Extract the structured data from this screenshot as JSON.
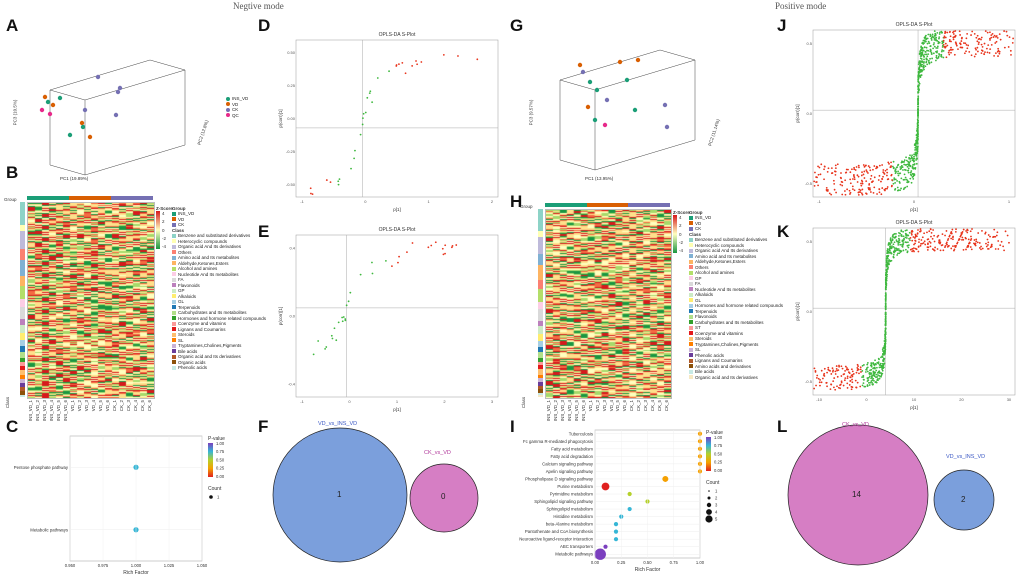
{
  "modes": {
    "negative": "Negtive mode",
    "positive": "Positive mode"
  },
  "panel_labels": [
    "A",
    "B",
    "C",
    "D",
    "E",
    "F",
    "G",
    "H",
    "I",
    "J",
    "K",
    "L"
  ],
  "splot": {
    "title": "OPLS-DA S-Plot",
    "xlabel": "p[1]",
    "ylabel": "p(corr)[1]"
  },
  "pca": {
    "neg": {
      "x": "PC1 (19.89%)",
      "y": "PC2 (12.8%)",
      "z": "PC3 (10.5%)"
    },
    "pos": {
      "x": "PC1 (13.95%)",
      "y": "PC2 (11.14%)",
      "z": "PC3 (9.57%)"
    },
    "legend_title": "Group",
    "groups": [
      {
        "name": "INS_VD",
        "color": "#1b9e77"
      },
      {
        "name": "VD",
        "color": "#d95f02"
      },
      {
        "name": "CK",
        "color": "#7570b3"
      },
      {
        "name": "QC",
        "color": "#e7298a"
      }
    ]
  },
  "heatmap": {
    "group_label": "Group",
    "class_label": "Class",
    "zscore_title": "Z-Score",
    "zscore_ticks": [
      "4",
      "2",
      "0",
      "-2",
      "-4"
    ],
    "group_title": "Group",
    "groups": [
      {
        "name": "INS_VD",
        "color": "#1b9e77"
      },
      {
        "name": "VD",
        "color": "#d95f02"
      },
      {
        "name": "CK",
        "color": "#7570b3"
      }
    ],
    "samples": [
      "INS_VD_1",
      "INS_VD_2",
      "INS_VD_3",
      "INS_VD_4",
      "INS_VD_5",
      "INS_VD_6",
      "VD_1",
      "VD_2",
      "VD_3",
      "VD_4",
      "VD_5",
      "VD_6",
      "CK_1",
      "CK_2",
      "CK_3",
      "CK_4",
      "CK_5",
      "CK_6"
    ],
    "classes_neg": [
      {
        "name": "Benzene and substituted derivatives",
        "color": "#8dd3c7"
      },
      {
        "name": "Heterocyclic compounds",
        "color": "#ffffb3"
      },
      {
        "name": "Organic acid And Its derivatives",
        "color": "#bebada"
      },
      {
        "name": "Others",
        "color": "#fb8072"
      },
      {
        "name": "Amino acid and Its metabolites",
        "color": "#80b1d3"
      },
      {
        "name": "Aldehyde,Ketones,Esters",
        "color": "#fdb462"
      },
      {
        "name": "Alcohol and amines",
        "color": "#b3de69"
      },
      {
        "name": "Nucleotide And Its metabolites",
        "color": "#fccde5"
      },
      {
        "name": "FA",
        "color": "#d9d9d9"
      },
      {
        "name": "Flavonoids",
        "color": "#bc80bd"
      },
      {
        "name": "GP",
        "color": "#ccebc5"
      },
      {
        "name": "Alkaloids",
        "color": "#ffed6f"
      },
      {
        "name": "GL",
        "color": "#a6cee3"
      },
      {
        "name": "Terpenoids",
        "color": "#1f78b4"
      },
      {
        "name": "Carbohydrates and Its metabolites",
        "color": "#b2df8a"
      },
      {
        "name": "Hormones and hormone related compounds",
        "color": "#33a02c"
      },
      {
        "name": "Coenzyme and vitamins",
        "color": "#fb9a99"
      },
      {
        "name": "Lignans and Coumarins",
        "color": "#e31a1c"
      },
      {
        "name": "Steroids",
        "color": "#fdbf6f"
      },
      {
        "name": "SL",
        "color": "#ff7f00"
      },
      {
        "name": "Tryptamines,Cholines,Pigments",
        "color": "#cab2d6"
      },
      {
        "name": "Bile acids",
        "color": "#6a3d9a"
      },
      {
        "name": "Organic acid and Its derivatives",
        "color": "#b15928"
      },
      {
        "name": "Organic acids",
        "color": "#8c510a"
      },
      {
        "name": "Phenolic acids",
        "color": "#c7eae5"
      }
    ],
    "classes_pos": [
      {
        "name": "Benzene and substituted derivatives",
        "color": "#8dd3c7"
      },
      {
        "name": "Heterocyclic compounds",
        "color": "#ffffb3"
      },
      {
        "name": "Organic acid And Its derivatives",
        "color": "#bebada"
      },
      {
        "name": "Amino acid and Its metabolites",
        "color": "#80b1d3"
      },
      {
        "name": "Aldehyde,Ketones,Esters",
        "color": "#fdb462"
      },
      {
        "name": "Others",
        "color": "#fb8072"
      },
      {
        "name": "Alcohol and amines",
        "color": "#b3de69"
      },
      {
        "name": "GP",
        "color": "#fccde5"
      },
      {
        "name": "FA",
        "color": "#d9d9d9"
      },
      {
        "name": "Nucleotide And Its metabolites",
        "color": "#bc80bd"
      },
      {
        "name": "Alkaloids",
        "color": "#ccebc5"
      },
      {
        "name": "GL",
        "color": "#ffed6f"
      },
      {
        "name": "Hormones and hormone related compounds",
        "color": "#a6cee3"
      },
      {
        "name": "Terpenoids",
        "color": "#1f78b4"
      },
      {
        "name": "Flavonoids",
        "color": "#b2df8a"
      },
      {
        "name": "Carbohydrates and Its metabolites",
        "color": "#33a02c"
      },
      {
        "name": "ST",
        "color": "#fb9a99"
      },
      {
        "name": "Coenzyme and vitamins",
        "color": "#e31a1c"
      },
      {
        "name": "Steroids",
        "color": "#fdbf6f"
      },
      {
        "name": "Tryptamines,Cholines,Pigments",
        "color": "#ff7f00"
      },
      {
        "name": "SL",
        "color": "#cab2d6"
      },
      {
        "name": "Phenolic acids",
        "color": "#6a3d9a"
      },
      {
        "name": "Lignans and Coumarins",
        "color": "#b15928"
      },
      {
        "name": "Amino acids and derivatives",
        "color": "#8c510a"
      },
      {
        "name": "Bile acids",
        "color": "#c7eae5"
      },
      {
        "name": "Organic acid and Its derivatives",
        "color": "#f6e8c3"
      }
    ]
  },
  "venn": {
    "neg": {
      "left_name": "VD_vs_INS_VD",
      "left_count": "1",
      "right_name": "CK_vs_VD",
      "right_count": "0"
    },
    "pos": {
      "left_name": "CK_vs_VD",
      "left_count": "14",
      "right_name": "VD_vs_INS_VD",
      "right_count": "2"
    }
  },
  "chart_data": [
    {
      "panel": "C",
      "type": "scatter",
      "subtype": "kegg-enrichment-bubble",
      "xlabel": "Rich Factor",
      "ylabel": "",
      "xlim": [
        0.95,
        1.05
      ],
      "x_ticks": [
        "0.950",
        "0.975",
        "1.000",
        "1.025",
        "1.050"
      ],
      "categories": [
        "Pentose phosphate pathway",
        "Metabolic pathways"
      ],
      "rich_factor": [
        1.0,
        1.0
      ],
      "p_value": [
        0.78,
        0.78
      ],
      "count": [
        1,
        1
      ],
      "color_title": "P-value",
      "color_ticks": [
        "1.00",
        "0.75",
        "0.50",
        "0.25",
        "0.00"
      ],
      "size_title": "Count",
      "size_ticks": [
        "1"
      ]
    },
    {
      "panel": "I",
      "type": "scatter",
      "subtype": "kegg-enrichment-bubble",
      "xlabel": "Rich Factor",
      "ylabel": "",
      "xlim": [
        0,
        1
      ],
      "x_ticks": [
        "0.00",
        "0.25",
        "0.50",
        "0.75",
        "1.00"
      ],
      "categories": [
        "Tuberculosis",
        "Fc gamma R-mediated phagocytosis",
        "Fatty acid metabolism",
        "Fatty acid degradation",
        "Calcium signaling pathway",
        "Apelin signaling pathway",
        "Phospholipase D signaling pathway",
        "Purine metabolism",
        "Pyrimidine metabolism",
        "Sphingolipid signaling pathway",
        "Sphingolipid metabolism",
        "Histidine metabolism",
        "beta-Alanine metabolism",
        "Pantothenate and CoA biosynthesis",
        "Neuroactive ligand-receptor interaction",
        "ABC transporters",
        "Metabolic pathways"
      ],
      "rich_factor": [
        1.0,
        1.0,
        1.0,
        1.0,
        1.0,
        1.0,
        0.67,
        0.1,
        0.33,
        0.5,
        0.33,
        0.25,
        0.2,
        0.2,
        0.2,
        0.1,
        0.05
      ],
      "p_value": [
        0.15,
        0.15,
        0.15,
        0.15,
        0.15,
        0.15,
        0.3,
        0.05,
        0.6,
        0.55,
        0.7,
        0.75,
        0.8,
        0.8,
        0.85,
        0.9,
        1.0
      ],
      "count": [
        1,
        1,
        1,
        1,
        1,
        1,
        2,
        3,
        1,
        1,
        1,
        1,
        1,
        1,
        1,
        1,
        5
      ],
      "color_title": "P-value",
      "color_ticks": [
        "1.00",
        "0.75",
        "0.50",
        "0.25",
        "0.00"
      ],
      "size_title": "Count",
      "size_ticks": [
        "1",
        "2",
        "3",
        "4",
        "5"
      ]
    }
  ],
  "splot_axes": {
    "D": {
      "x_ticks": [
        "-1",
        "0",
        "1",
        "2"
      ],
      "y_ticks": [
        "0.50",
        "0.25",
        "0.00",
        "-0.25",
        "-0.50"
      ]
    },
    "E": {
      "x_ticks": [
        "-1",
        "0",
        "1",
        "2",
        "3"
      ],
      "y_ticks": [
        "0.4",
        "0.0",
        "-0.4"
      ]
    },
    "J": {
      "x_ticks": [
        "-1",
        "0",
        "1"
      ],
      "y_ticks": [
        "0.5",
        "0.0",
        "-0.5"
      ]
    },
    "K": {
      "x_ticks": [
        "-10",
        "0",
        "10",
        "20",
        "30"
      ],
      "y_ticks": [
        "0.5",
        "0.0",
        "-0.5"
      ]
    }
  }
}
